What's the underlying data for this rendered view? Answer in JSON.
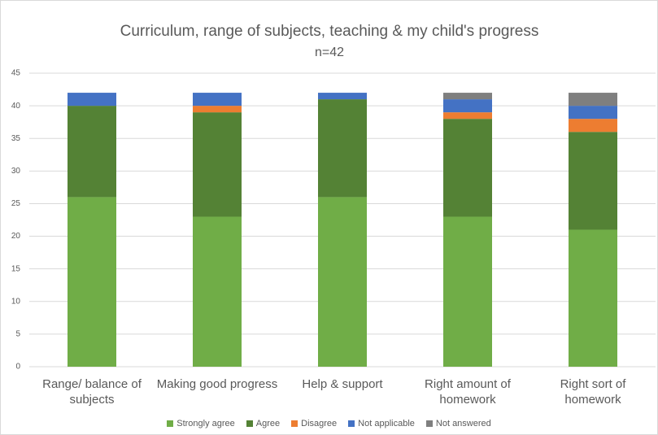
{
  "chart_data": {
    "type": "stacked_bar",
    "title": "Curriculum, range of subjects, teaching & my child's progress",
    "subtitle": "n=42",
    "categories": [
      "Range/ balance of subjects",
      "Making good progress",
      "Help & support",
      "Right amount of homework",
      "Right sort of homework"
    ],
    "series": [
      {
        "name": "Strongly agree",
        "color": "#70ad47",
        "values": [
          26,
          23,
          26,
          23,
          21
        ]
      },
      {
        "name": "Agree",
        "color": "#548235",
        "values": [
          14,
          16,
          15,
          15,
          15
        ]
      },
      {
        "name": "Disagree",
        "color": "#ed7d31",
        "values": [
          0,
          1,
          0,
          1,
          2
        ]
      },
      {
        "name": "Not applicable",
        "color": "#4472c4",
        "values": [
          2,
          2,
          1,
          2,
          2
        ]
      },
      {
        "name": "Not answered",
        "color": "#7f7f7f",
        "values": [
          0,
          0,
          0,
          1,
          2
        ]
      }
    ],
    "ylim": [
      0,
      45
    ],
    "yticks": [
      0,
      5,
      10,
      15,
      20,
      25,
      30,
      35,
      40,
      45
    ],
    "grid": true
  }
}
